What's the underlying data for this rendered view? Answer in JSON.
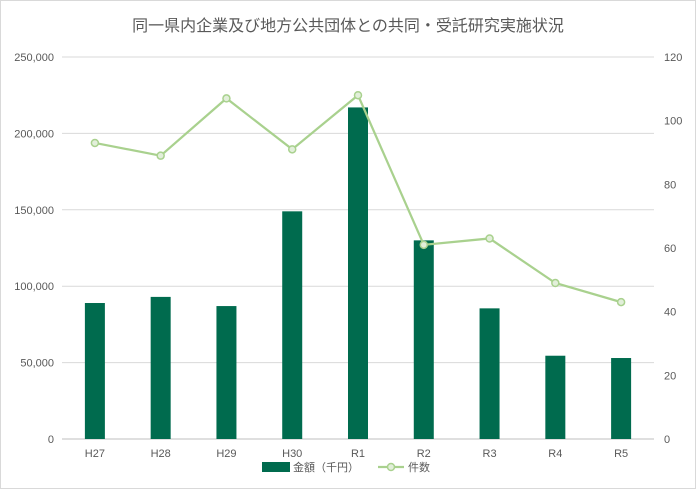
{
  "chart_data": {
    "type": "bar",
    "title": "同一県内企業及び地方公共団体との共同・受託研究実施状況",
    "categories": [
      "H27",
      "H28",
      "H29",
      "H30",
      "R1",
      "R2",
      "R3",
      "R4",
      "R5"
    ],
    "series": [
      {
        "name": "金額（千円）",
        "type": "bar",
        "axis": "left",
        "color": "#006b4e",
        "values": [
          89000,
          93000,
          87000,
          149000,
          217000,
          130000,
          85500,
          54500,
          53000
        ]
      },
      {
        "name": "件数",
        "type": "line",
        "axis": "right",
        "color": "#a9d18e",
        "values": [
          93,
          89,
          107,
          91,
          108,
          61,
          63,
          49,
          43
        ]
      }
    ],
    "y_left": {
      "min": 0,
      "max": 250000,
      "ticks": [
        "0",
        "50,000",
        "100,000",
        "150,000",
        "200,000",
        "250,000"
      ]
    },
    "y_right": {
      "min": 0,
      "max": 120,
      "ticks": [
        "0",
        "20",
        "40",
        "60",
        "80",
        "100",
        "120"
      ]
    },
    "grid": true,
    "legend": "bottom"
  }
}
